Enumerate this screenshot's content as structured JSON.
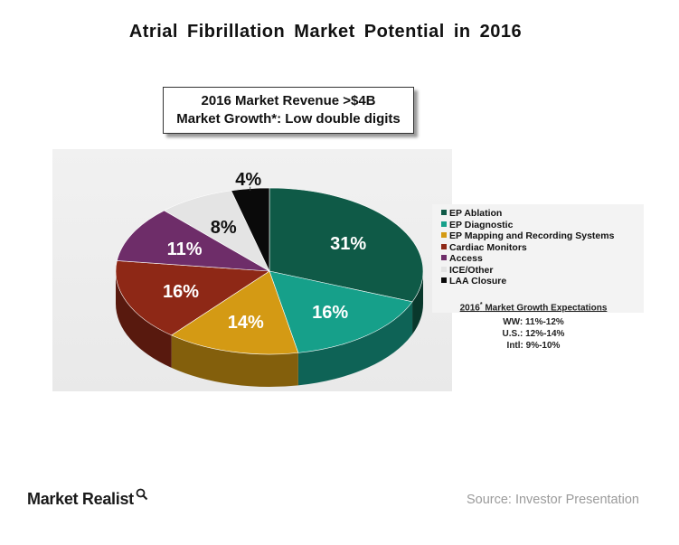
{
  "title": "Atrial Fibrillation Market Potential in 2016",
  "revenue_box": {
    "line1": "2016 Market Revenue >$4B",
    "line2": "Market Growth*: Low double digits"
  },
  "chart_data": {
    "type": "pie",
    "title": "Atrial Fibrillation Market Potential in 2016",
    "slices": [
      {
        "label": "EP Ablation",
        "value": 31,
        "display": "31%",
        "color": "#0f5a47"
      },
      {
        "label": "EP Diagnostic",
        "value": 16,
        "display": "16%",
        "color": "#16a08a"
      },
      {
        "label": "EP Mapping and Recording Systems",
        "value": 14,
        "display": "14%",
        "color": "#d49a14"
      },
      {
        "label": "Cardiac Monitors",
        "value": 16,
        "display": "16%",
        "color": "#8e2816"
      },
      {
        "label": "Access",
        "value": 11,
        "display": "11%",
        "color": "#6e2d69"
      },
      {
        "label": "ICE/Other",
        "value": 8,
        "display": "8%",
        "color": "#e4e4e4"
      },
      {
        "label": "LAA Closure",
        "value": 4,
        "display": "4%",
        "color": "#0a0a0a"
      }
    ],
    "legend_position": "right"
  },
  "growth_expectations": {
    "heading_pre": "2016",
    "heading_sup": "*",
    "heading_post": " Market Growth Expectations",
    "rows": [
      "WW: 11%-12%",
      "U.S.: 12%-14%",
      "Intl: 9%-10%"
    ]
  },
  "logo": "Market Realist",
  "source": "Source: Investor Presentation"
}
